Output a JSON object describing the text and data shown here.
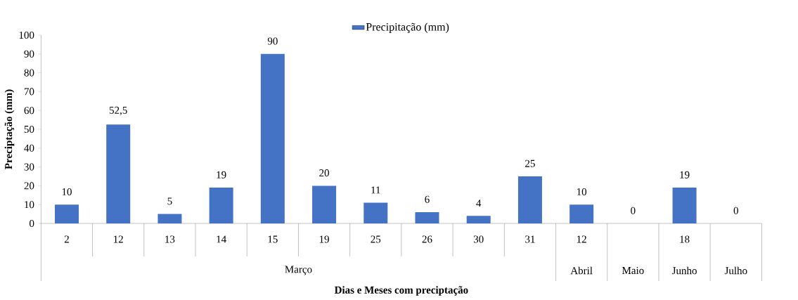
{
  "chart_data": {
    "type": "bar",
    "xlabel": "Dias e Meses com preciptação",
    "ylabel": "Preciptação (mm)",
    "categories": [
      "2",
      "12",
      "13",
      "14",
      "15",
      "19",
      "25",
      "26",
      "30",
      "31",
      "12",
      null,
      "18",
      null
    ],
    "series": [
      {
        "name": "Precipitação (mm)",
        "color": "#4472c4",
        "values": [
          10,
          52.5,
          5,
          19,
          90,
          20,
          11,
          6,
          4,
          25,
          10,
          0,
          19,
          0
        ],
        "value_labels": [
          "10",
          "52,5",
          "5",
          "19",
          "90",
          "20",
          "11",
          "6",
          "4",
          "25",
          "10",
          "0",
          "19",
          "0"
        ]
      }
    ],
    "annotations": [
      "Março",
      "Abril",
      "Maio",
      "Junho",
      "Julho"
    ],
    "ylim": [
      0,
      100
    ],
    "yticks": [
      0,
      10,
      20,
      30,
      40,
      50,
      60,
      70,
      80,
      90,
      100
    ],
    "legend": "top",
    "grid": false
  }
}
